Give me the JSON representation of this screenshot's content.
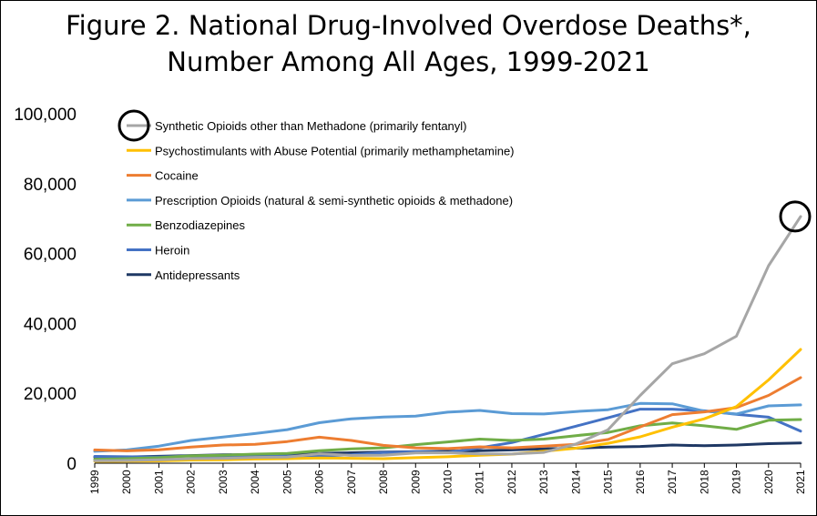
{
  "chart_data": {
    "type": "line",
    "title": "Figure 2. National Drug-Involved Overdose Deaths*,",
    "subtitle": "Number Among All Ages, 1999-2021",
    "xlabel": "",
    "ylabel": "",
    "ylim": [
      0,
      100000
    ],
    "yticks": [
      "0",
      "20,000",
      "40,000",
      "60,000",
      "80,000",
      "100,000"
    ],
    "yticks_values": [
      0,
      20000,
      40000,
      60000,
      80000,
      100000
    ],
    "x": [
      "1999",
      "2000",
      "2001",
      "2002",
      "2003",
      "2004",
      "2005",
      "2006",
      "2007",
      "2008",
      "2009",
      "2010",
      "2011",
      "2012",
      "2013",
      "2014",
      "2015",
      "2016",
      "2017",
      "2018",
      "2019",
      "2020",
      "2021"
    ],
    "grid": false,
    "legend_position": "top-left",
    "series": [
      {
        "name": "Synthetic Opioids other than Methadone (primarily fentanyl)",
        "color": "#a6a6a6",
        "values": [
          730,
          780,
          960,
          1300,
          1400,
          1660,
          1740,
          2700,
          2210,
          2300,
          2950,
          3000,
          2670,
          2630,
          3100,
          5500,
          9580,
          19400,
          28470,
          31340,
          36360,
          56520,
          70600
        ]
      },
      {
        "name": "Psychostimulants with Abuse Potential (primarily methamphetamine)",
        "color": "#ffc000",
        "values": [
          550,
          580,
          650,
          900,
          1000,
          1200,
          1300,
          1500,
          1400,
          1300,
          1600,
          1850,
          2300,
          2600,
          3400,
          4300,
          5700,
          7550,
          10300,
          12700,
          16200,
          23840,
          32540
        ]
      },
      {
        "name": "Cocaine",
        "color": "#ed7d31",
        "values": [
          3800,
          3540,
          3830,
          4600,
          5200,
          5400,
          6200,
          7450,
          6500,
          5100,
          4400,
          4200,
          4700,
          4400,
          4900,
          5400,
          6800,
          10400,
          13900,
          14700,
          15900,
          19400,
          24500
        ]
      },
      {
        "name": "Prescription Opioids (natural & semi-synthetic opioids & methadone)",
        "color": "#5b9bd5",
        "values": [
          3400,
          3800,
          4900,
          6500,
          7500,
          8500,
          9600,
          11600,
          12700,
          13200,
          13500,
          14600,
          15100,
          14200,
          14100,
          14800,
          15300,
          17100,
          17000,
          14900,
          14100,
          16400,
          16700
        ]
      },
      {
        "name": "Benzodiazepines",
        "color": "#70ad47",
        "values": [
          1140,
          1300,
          1600,
          2100,
          2300,
          2600,
          2800,
          3600,
          4100,
          4400,
          5300,
          6100,
          6900,
          6500,
          6900,
          7900,
          8800,
          10700,
          11500,
          10700,
          9700,
          12300,
          12500
        ]
      },
      {
        "name": "Heroin",
        "color": "#4472c4",
        "values": [
          1960,
          1840,
          1780,
          2090,
          2080,
          1880,
          2010,
          2090,
          2400,
          3040,
          3280,
          3040,
          4400,
          5900,
          8260,
          10600,
          12990,
          15470,
          15480,
          14990,
          14020,
          13170,
          9170
        ]
      },
      {
        "name": "Antidepressants",
        "color": "#1f3864",
        "values": [
          1750,
          1800,
          1980,
          2200,
          2400,
          2500,
          2600,
          2800,
          3000,
          3200,
          3300,
          3400,
          3600,
          3800,
          4100,
          4300,
          4600,
          4800,
          5200,
          5000,
          5200,
          5600,
          5800
        ]
      }
    ],
    "annotations": []
  }
}
